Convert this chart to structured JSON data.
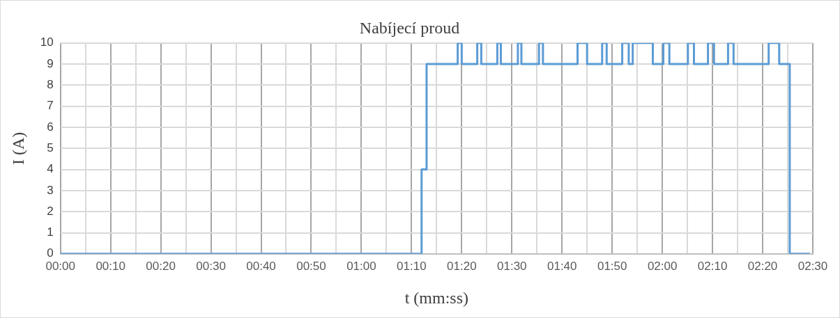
{
  "chart_data": {
    "type": "step",
    "title": "Nabíjecí proud",
    "xlabel": "t (mm:ss)",
    "ylabel": "I (A)",
    "x": [
      0,
      72,
      73,
      79.2,
      80,
      83.1,
      83.9,
      87.1,
      87.8,
      91.2,
      91.9,
      95.4,
      96.2,
      103.1,
      105,
      108,
      108.9,
      112,
      113.3,
      114.1,
      118.1,
      120.2,
      121.4,
      125.1,
      126.3,
      129.1,
      130.3,
      133.1,
      134.2,
      141.2,
      143.3,
      145.4,
      149.4
    ],
    "series": [
      {
        "color": "#5b9bd5",
        "values": [
          0,
          4,
          9,
          10,
          9,
          10,
          9,
          10,
          9,
          10,
          9,
          10,
          9,
          10,
          9,
          10,
          9,
          10,
          9,
          10,
          9,
          10,
          9,
          10,
          9,
          10,
          9,
          10,
          9,
          10,
          9,
          0,
          0
        ]
      }
    ],
    "xlim": [
      0,
      150
    ],
    "xticks": [
      {
        "value": 0,
        "label": "00:00"
      },
      {
        "value": 5,
        "label": null
      },
      {
        "value": 10,
        "label": "00:10"
      },
      {
        "value": 15,
        "label": null
      },
      {
        "value": 20,
        "label": "00:20"
      },
      {
        "value": 25,
        "label": null
      },
      {
        "value": 30,
        "label": "00:30"
      },
      {
        "value": 35,
        "label": null
      },
      {
        "value": 40,
        "label": "00:40"
      },
      {
        "value": 45,
        "label": null
      },
      {
        "value": 50,
        "label": "00:50"
      },
      {
        "value": 55,
        "label": null
      },
      {
        "value": 60,
        "label": "01:00"
      },
      {
        "value": 65,
        "label": null
      },
      {
        "value": 70,
        "label": "01:10"
      },
      {
        "value": 75,
        "label": null
      },
      {
        "value": 80,
        "label": "01:20"
      },
      {
        "value": 85,
        "label": null
      },
      {
        "value": 90,
        "label": "01:30"
      },
      {
        "value": 95,
        "label": null
      },
      {
        "value": 100,
        "label": "01:40"
      },
      {
        "value": 105,
        "label": null
      },
      {
        "value": 110,
        "label": "01:50"
      },
      {
        "value": 115,
        "label": null
      },
      {
        "value": 120,
        "label": "02:00"
      },
      {
        "value": 125,
        "label": null
      },
      {
        "value": 130,
        "label": "02:10"
      },
      {
        "value": 135,
        "label": null
      },
      {
        "value": 140,
        "label": "02:20"
      },
      {
        "value": 145,
        "label": null
      },
      {
        "value": 150,
        "label": "02:30"
      }
    ],
    "ylim": [
      0,
      10
    ],
    "yticks": [
      0,
      1,
      2,
      3,
      4,
      5,
      6,
      7,
      8,
      9,
      10
    ],
    "grid": true,
    "legend": false,
    "marker": "none",
    "line_style": "solid"
  }
}
